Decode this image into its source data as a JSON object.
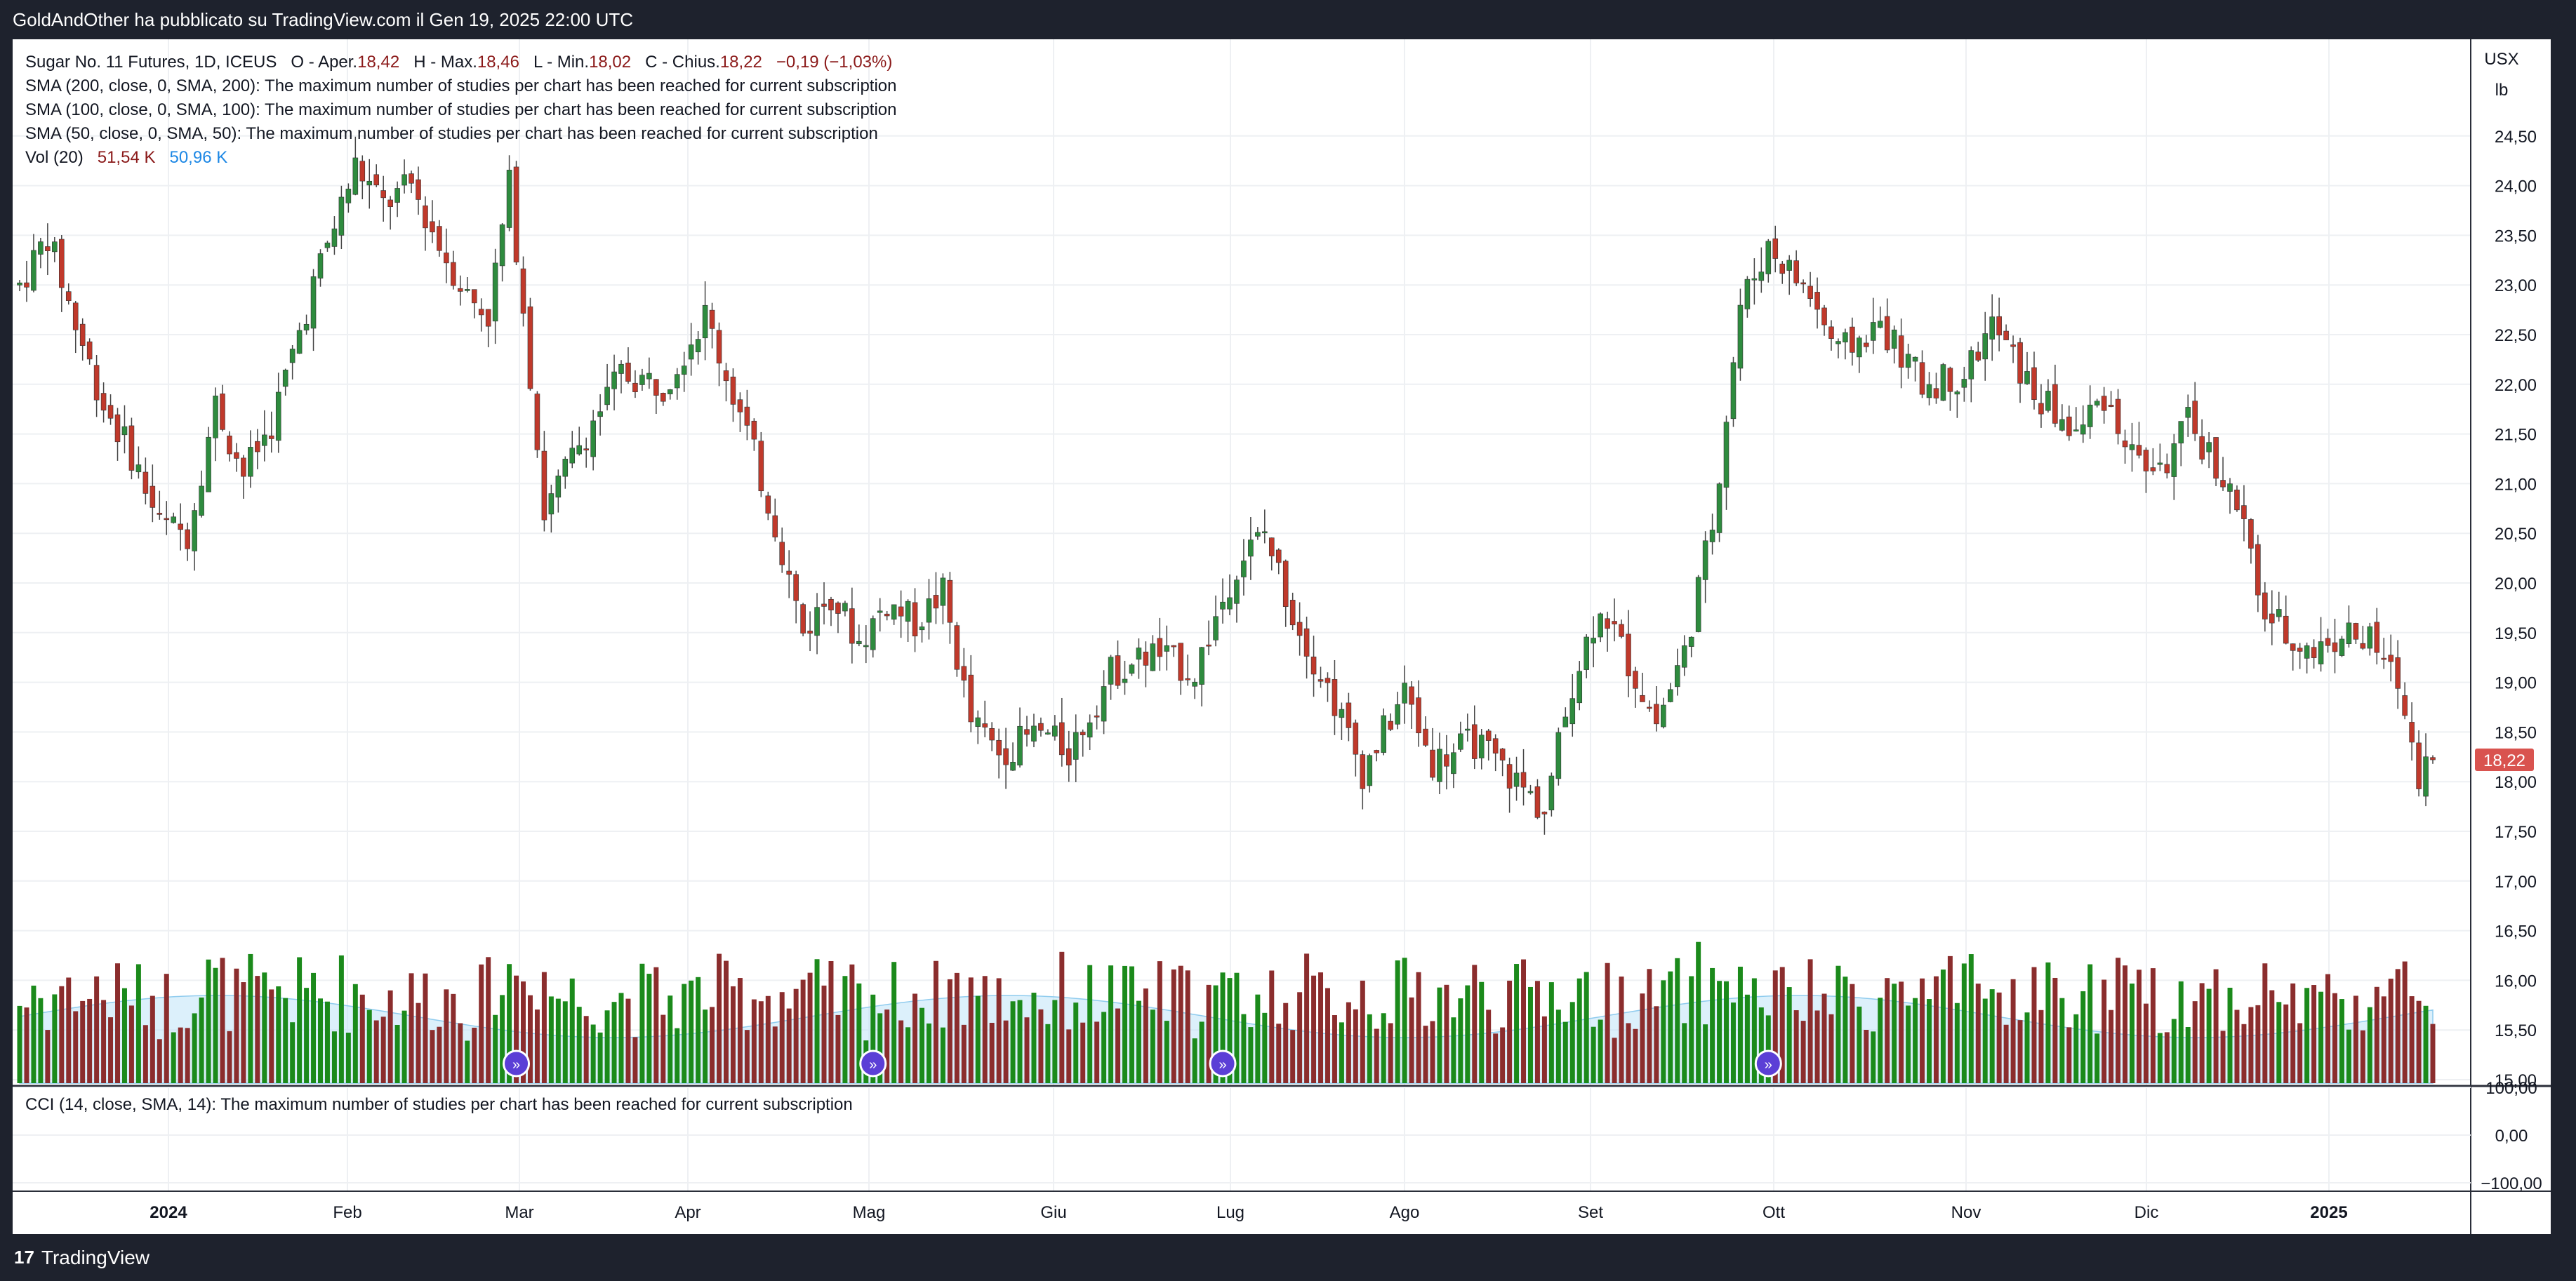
{
  "header": {
    "published": "GoldAndOther ha pubblicato su TradingView.com il Gen 19, 2025 22:00 UTC"
  },
  "legend": {
    "title": "Sugar No. 11 Futures, 1D, ICEUS",
    "o_label": "O - Aper.",
    "o_value": "18,42",
    "h_label": "H - Max.",
    "h_value": "18,46",
    "l_label": "L - Min.",
    "l_value": "18,02",
    "c_label": "C - Chius.",
    "c_value": "18,22",
    "change": "−0,19 (−1,03%)",
    "sma200": "SMA (200, close, 0, SMA, 200): The maximum number of studies per chart has been reached for current subscription",
    "sma100": "SMA (100, close, 0, SMA, 100): The maximum number of studies per chart has been reached for current subscription",
    "sma50": "SMA (50, close, 0, SMA, 50): The maximum number of studies per chart has been reached for current subscription",
    "vol_label": "Vol (20)",
    "vol_value": "51,54 K",
    "vol_ma": "50,96 K"
  },
  "cci": {
    "label": "CCI (14, close, SMA, 14): The maximum number of studies per chart has been reached for current subscription"
  },
  "footer": {
    "brand": "TradingView",
    "logo": "17"
  },
  "colors": {
    "up": "#2e8b3e",
    "down": "#c0392b",
    "vol_up": "#1b8a1b",
    "vol_down": "#8b2d2d",
    "vol_ma_fill": "#bfe3f7",
    "price_tag": "#d9534f"
  },
  "chart_data": {
    "type": "candlestick",
    "price_axis": {
      "unit_top": "USX",
      "unit_bottom": "lb",
      "ticks": [
        "24,50",
        "24,00",
        "23,50",
        "23,00",
        "22,50",
        "22,00",
        "21,50",
        "21,00",
        "20,50",
        "20,00",
        "19,50",
        "19,00",
        "18,50",
        "18,00",
        "17,50",
        "17,00",
        "16,50",
        "16,00",
        "15,50",
        "15,00"
      ],
      "ylim": [
        15.0,
        25.0
      ],
      "last_price": "18,22",
      "last_price_value": 18.22
    },
    "cci_axis": {
      "ticks": [
        "100,00",
        "0,00",
        "−100,00"
      ]
    },
    "time_axis": {
      "labels": [
        "2024",
        "Feb",
        "Mar",
        "Apr",
        "Mag",
        "Giu",
        "Lug",
        "Ago",
        "Set",
        "Ott",
        "Nov",
        "Dic",
        "2025"
      ],
      "bold": [
        "2024",
        "2025"
      ]
    },
    "anchors": [
      {
        "t": 0,
        "p": 23.0
      },
      {
        "t": 4,
        "p": 23.5
      },
      {
        "t": 8,
        "p": 22.6
      },
      {
        "t": 12,
        "p": 21.8
      },
      {
        "t": 16,
        "p": 21.3
      },
      {
        "t": 20,
        "p": 20.6
      },
      {
        "t": 24,
        "p": 20.5
      },
      {
        "t": 28,
        "p": 21.8
      },
      {
        "t": 32,
        "p": 21.1
      },
      {
        "t": 36,
        "p": 21.6
      },
      {
        "t": 42,
        "p": 23.0
      },
      {
        "t": 48,
        "p": 24.2
      },
      {
        "t": 52,
        "p": 23.8
      },
      {
        "t": 56,
        "p": 24.0
      },
      {
        "t": 60,
        "p": 23.4
      },
      {
        "t": 64,
        "p": 22.9
      },
      {
        "t": 67,
        "p": 22.7
      },
      {
        "t": 70,
        "p": 24.0
      },
      {
        "t": 72,
        "p": 22.8
      },
      {
        "t": 75,
        "p": 20.7
      },
      {
        "t": 80,
        "p": 21.4
      },
      {
        "t": 86,
        "p": 22.1
      },
      {
        "t": 92,
        "p": 22.0
      },
      {
        "t": 98,
        "p": 22.7
      },
      {
        "t": 104,
        "p": 21.5
      },
      {
        "t": 108,
        "p": 20.6
      },
      {
        "t": 112,
        "p": 19.5
      },
      {
        "t": 116,
        "p": 19.9
      },
      {
        "t": 120,
        "p": 19.4
      },
      {
        "t": 124,
        "p": 19.8
      },
      {
        "t": 128,
        "p": 19.6
      },
      {
        "t": 132,
        "p": 19.9
      },
      {
        "t": 136,
        "p": 18.6
      },
      {
        "t": 140,
        "p": 18.3
      },
      {
        "t": 146,
        "p": 18.5
      },
      {
        "t": 150,
        "p": 18.3
      },
      {
        "t": 156,
        "p": 19.1
      },
      {
        "t": 162,
        "p": 19.3
      },
      {
        "t": 168,
        "p": 19.1
      },
      {
        "t": 174,
        "p": 20.2
      },
      {
        "t": 178,
        "p": 20.5
      },
      {
        "t": 182,
        "p": 19.7
      },
      {
        "t": 188,
        "p": 18.8
      },
      {
        "t": 192,
        "p": 18.1
      },
      {
        "t": 198,
        "p": 18.9
      },
      {
        "t": 202,
        "p": 18.2
      },
      {
        "t": 208,
        "p": 18.4
      },
      {
        "t": 214,
        "p": 18.0
      },
      {
        "t": 218,
        "p": 17.7
      },
      {
        "t": 222,
        "p": 19.0
      },
      {
        "t": 226,
        "p": 19.8
      },
      {
        "t": 230,
        "p": 19.2
      },
      {
        "t": 234,
        "p": 18.6
      },
      {
        "t": 238,
        "p": 19.3
      },
      {
        "t": 242,
        "p": 20.6
      },
      {
        "t": 246,
        "p": 22.8
      },
      {
        "t": 250,
        "p": 23.4
      },
      {
        "t": 256,
        "p": 22.9
      },
      {
        "t": 260,
        "p": 22.3
      },
      {
        "t": 266,
        "p": 22.6
      },
      {
        "t": 272,
        "p": 22.0
      },
      {
        "t": 278,
        "p": 22.1
      },
      {
        "t": 282,
        "p": 22.6
      },
      {
        "t": 288,
        "p": 21.9
      },
      {
        "t": 294,
        "p": 21.5
      },
      {
        "t": 298,
        "p": 21.9
      },
      {
        "t": 302,
        "p": 21.3
      },
      {
        "t": 306,
        "p": 21.1
      },
      {
        "t": 310,
        "p": 21.6
      },
      {
        "t": 314,
        "p": 21.2
      },
      {
        "t": 318,
        "p": 20.6
      },
      {
        "t": 320,
        "p": 19.8
      },
      {
        "t": 324,
        "p": 19.5
      },
      {
        "t": 328,
        "p": 19.3
      },
      {
        "t": 332,
        "p": 19.5
      },
      {
        "t": 336,
        "p": 19.4
      },
      {
        "t": 340,
        "p": 19.0
      },
      {
        "t": 343,
        "p": 18.1
      },
      {
        "t": 345,
        "p": 18.22
      }
    ],
    "events": [
      {
        "t": 71
      },
      {
        "t": 122
      },
      {
        "t": 172
      },
      {
        "t": 250
      }
    ]
  }
}
